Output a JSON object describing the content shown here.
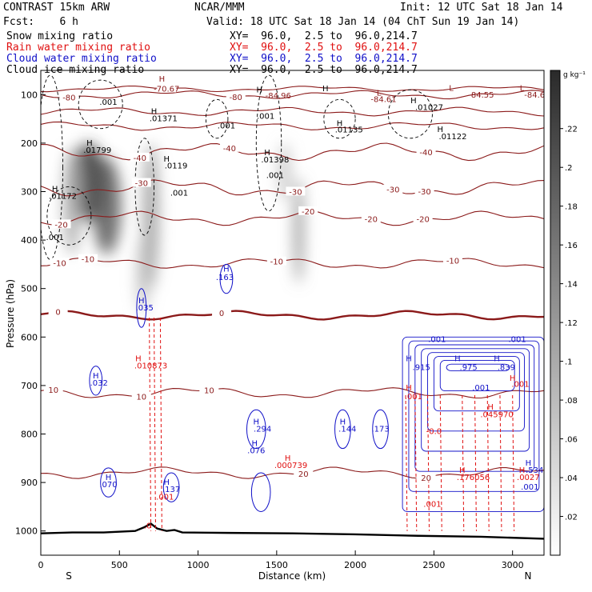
{
  "header": {
    "model": "CONTRAST 15km ARW",
    "center": "NCAR/MMM",
    "init": "Init: 12 UTC Sat 18 Jan 14",
    "fcst": "Fcst:    6 h",
    "valid": "Valid: 18 UTC Sat 18 Jan 14 (04 ChT Sun 19 Jan 14)",
    "fields": [
      {
        "label": "Snow mixing ratio",
        "xy": "XY=  96.0,  2.5 to  96.0,214.7",
        "color": "#000000"
      },
      {
        "label": "Rain water mixing ratio",
        "xy": "XY=  96.0,  2.5 to  96.0,214.7",
        "color": "#e01010"
      },
      {
        "label": "Cloud water mixing ratio",
        "xy": "XY=  96.0,  2.5 to  96.0,214.7",
        "color": "#1010c8"
      },
      {
        "label": "Cloud ice mixing ratio",
        "xy": "XY=  96.0,  2.5 to  96.0,214.7",
        "color": "#000000"
      }
    ]
  },
  "chart_data": {
    "type": "cross-section",
    "xlabel": "Distance (km)",
    "ylabel": "Pressure (hPa)",
    "xlim": [
      0,
      3200
    ],
    "ylim": [
      1050,
      50
    ],
    "xticks": [
      0,
      500,
      1000,
      1500,
      2000,
      2500,
      3000
    ],
    "yticks": [
      100,
      200,
      300,
      400,
      500,
      600,
      700,
      800,
      900,
      1000
    ],
    "x_end_labels": {
      "left": "S",
      "right": "N"
    },
    "colorbar": {
      "unit": "g kg⁻¹",
      "ticks": [
        0.02,
        0.04,
        0.06,
        0.08,
        0.1,
        0.12,
        0.14,
        0.16,
        0.18,
        0.2,
        0.22
      ],
      "tick_labels": [
        ".02",
        ".04",
        ".06",
        ".08",
        ".1",
        ".12",
        ".14",
        ".16",
        ".18",
        ".2",
        ".22"
      ],
      "max": 0.25
    },
    "snow_blobs": [
      {
        "x": 300,
        "p": 280,
        "rx": 110,
        "rp": 80,
        "v": 0.24
      },
      {
        "x": 420,
        "p": 330,
        "rx": 90,
        "rp": 100,
        "v": 0.2
      },
      {
        "x": 200,
        "p": 320,
        "rx": 60,
        "rp": 110,
        "v": 0.1
      },
      {
        "x": 700,
        "p": 350,
        "rx": 50,
        "rp": 150,
        "v": 0.12
      },
      {
        "x": 650,
        "p": 470,
        "rx": 40,
        "rp": 80,
        "v": 0.08
      },
      {
        "x": 1640,
        "p": 380,
        "rx": 30,
        "rp": 110,
        "v": 0.14
      },
      {
        "x": 1550,
        "p": 260,
        "rx": 35,
        "rp": 60,
        "v": 0.08
      }
    ],
    "temperature_contours": [
      {
        "level": -80,
        "label": "-80",
        "base_p": 100,
        "amp": 6,
        "label_x": [
          180,
          1240
        ]
      },
      {
        "level": -70,
        "label": "-70.67",
        "base_p": 88,
        "amp": 4,
        "label_x": [
          800
        ]
      },
      {
        "level": -60,
        "label": "",
        "base_p": 135,
        "amp": 6,
        "label_x": []
      },
      {
        "level": -50,
        "label": "",
        "base_p": 165,
        "amp": 6,
        "label_x": []
      },
      {
        "level": -40,
        "label": "-40",
        "base_p": 218,
        "amp": 12,
        "label_x": [
          630,
          1200,
          2450
        ]
      },
      {
        "level": -30,
        "label": "-30",
        "base_p": 292,
        "amp": 12,
        "label_x": [
          640,
          1620,
          2240,
          2440
        ]
      },
      {
        "level": -20,
        "label": "-20",
        "base_p": 355,
        "amp": 10,
        "label_x": [
          130,
          1700,
          2100,
          2430
        ]
      },
      {
        "level": -10,
        "label": "-10",
        "base_p": 448,
        "amp": 8,
        "label_x": [
          120,
          300,
          1500,
          2620
        ]
      },
      {
        "level": 0,
        "label": "0",
        "base_p": 555,
        "amp": 6,
        "label_x": [
          110,
          1150
        ]
      },
      {
        "level": 10,
        "label": "10",
        "base_p": 715,
        "amp": 8,
        "label_x": [
          80,
          640,
          1070
        ]
      },
      {
        "level": 20,
        "label": "20",
        "base_p": 880,
        "amp": 8,
        "label_x": [
          1670,
          2450
        ]
      }
    ],
    "extra_labels": [
      {
        "text": "-84.96",
        "x": 1510,
        "p": 108,
        "color": "#8b1a1a"
      },
      {
        "text": "-84.61",
        "x": 2180,
        "p": 115,
        "color": "#8b1a1a"
      },
      {
        "text": "-84.55",
        "x": 2800,
        "p": 106,
        "color": "#8b1a1a"
      },
      {
        "text": "-84.6",
        "x": 3140,
        "p": 106,
        "color": "#8b1a1a"
      },
      {
        "text": "L",
        "x": 2150,
        "p": 102,
        "color": "#8b1a1a"
      },
      {
        "text": "L",
        "x": 2610,
        "p": 92,
        "color": "#8b1a1a"
      },
      {
        "text": "L",
        "x": 3060,
        "p": 92,
        "color": "#8b1a1a"
      },
      {
        "text": "H",
        "x": 770,
        "p": 73,
        "color": "#8b1a1a"
      },
      {
        "text": "H",
        "x": 1390,
        "p": 95,
        "color": "#000000"
      },
      {
        "text": "H",
        "x": 1810,
        "p": 93,
        "color": "#000000"
      },
      {
        "text": ".001",
        "x": 430,
        "p": 121,
        "color": "#000000"
      },
      {
        "text": "H",
        "x": 720,
        "p": 140,
        "color": "#000000"
      },
      {
        "text": ".01371",
        "x": 780,
        "p": 155,
        "color": "#000000"
      },
      {
        "text": ".001",
        "x": 1180,
        "p": 170,
        "color": "#000000"
      },
      {
        "text": ".001",
        "x": 1430,
        "p": 150,
        "color": "#000000"
      },
      {
        "text": "H",
        "x": 1900,
        "p": 165,
        "color": "#000000"
      },
      {
        "text": ".01135",
        "x": 1960,
        "p": 178,
        "color": "#000000"
      },
      {
        "text": "H",
        "x": 2370,
        "p": 118,
        "color": "#000000"
      },
      {
        "text": ".01027",
        "x": 2470,
        "p": 132,
        "color": "#000000"
      },
      {
        "text": "H",
        "x": 2540,
        "p": 177,
        "color": "#000000"
      },
      {
        "text": ".01122",
        "x": 2620,
        "p": 192,
        "color": "#000000"
      },
      {
        "text": "H",
        "x": 310,
        "p": 205,
        "color": "#000000"
      },
      {
        "text": ".01799",
        "x": 360,
        "p": 220,
        "color": "#000000"
      },
      {
        "text": "H",
        "x": 800,
        "p": 238,
        "color": "#000000"
      },
      {
        "text": ".0119",
        "x": 860,
        "p": 252,
        "color": "#000000"
      },
      {
        "text": "H",
        "x": 1440,
        "p": 225,
        "color": "#000000"
      },
      {
        "text": ".01398",
        "x": 1490,
        "p": 240,
        "color": "#000000"
      },
      {
        "text": ".001",
        "x": 1490,
        "p": 272,
        "color": "#000000"
      },
      {
        "text": ".001",
        "x": 880,
        "p": 308,
        "color": "#000000"
      },
      {
        "text": "H",
        "x": 90,
        "p": 300,
        "color": "#000000"
      },
      {
        "text": ".01172",
        "x": 140,
        "p": 315,
        "color": "#000000"
      },
      {
        "text": ".001",
        "x": 90,
        "p": 400,
        "color": "#000000"
      },
      {
        "text": "H",
        "x": 1180,
        "p": 465,
        "color": "#1010c8"
      },
      {
        "text": ".163",
        "x": 1170,
        "p": 482,
        "color": "#1010c8"
      },
      {
        "text": "H",
        "x": 640,
        "p": 530,
        "color": "#1010c8"
      },
      {
        "text": ".035",
        "x": 660,
        "p": 545,
        "color": "#1010c8"
      },
      {
        "text": "H",
        "x": 620,
        "p": 650,
        "color": "#e01010"
      },
      {
        "text": ".010873",
        "x": 700,
        "p": 665,
        "color": "#e01010"
      },
      {
        "text": "H",
        "x": 350,
        "p": 685,
        "color": "#1010c8"
      },
      {
        "text": ".032",
        "x": 370,
        "p": 700,
        "color": "#1010c8"
      },
      {
        "text": "H",
        "x": 1370,
        "p": 780,
        "color": "#1010c8"
      },
      {
        "text": ".294",
        "x": 1410,
        "p": 795,
        "color": "#1010c8"
      },
      {
        "text": "H",
        "x": 1920,
        "p": 780,
        "color": "#1010c8"
      },
      {
        "text": ".144",
        "x": 1950,
        "p": 795,
        "color": "#1010c8"
      },
      {
        "text": ".173",
        "x": 2160,
        "p": 795,
        "color": "#1010c8"
      },
      {
        "text": "H",
        "x": 1360,
        "p": 825,
        "color": "#1010c8"
      },
      {
        "text": ".076",
        "x": 1370,
        "p": 840,
        "color": "#1010c8"
      },
      {
        "text": "H",
        "x": 1570,
        "p": 855,
        "color": "#e01010"
      },
      {
        "text": ".000739",
        "x": 1590,
        "p": 870,
        "color": "#e01010"
      },
      {
        "text": "H",
        "x": 2340,
        "p": 650,
        "color": "#1010c8"
      },
      {
        "text": ".915",
        "x": 2420,
        "p": 668,
        "color": "#1010c8"
      },
      {
        "text": ".001",
        "x": 2520,
        "p": 610,
        "color": "#1010c8"
      },
      {
        "text": "H",
        "x": 2650,
        "p": 650,
        "color": "#1010c8"
      },
      {
        "text": ".975",
        "x": 2720,
        "p": 668,
        "color": "#1010c8"
      },
      {
        "text": "H",
        "x": 2900,
        "p": 650,
        "color": "#1010c8"
      },
      {
        "text": ".839",
        "x": 2960,
        "p": 668,
        "color": "#1010c8"
      },
      {
        "text": ".001",
        "x": 3030,
        "p": 610,
        "color": "#1010c8"
      },
      {
        "text": "H",
        "x": 3000,
        "p": 690,
        "color": "#e01010"
      },
      {
        "text": ".001",
        "x": 3050,
        "p": 703,
        "color": "#e01010"
      },
      {
        "text": "H",
        "x": 2340,
        "p": 710,
        "color": "#e01010"
      },
      {
        "text": ".001",
        "x": 2370,
        "p": 728,
        "color": "#e01010"
      },
      {
        "text": "H",
        "x": 2860,
        "p": 750,
        "color": "#e01010"
      },
      {
        "text": ".045970",
        "x": 2900,
        "p": 765,
        "color": "#e01010"
      },
      {
        "text": ".001",
        "x": 2800,
        "p": 710,
        "color": "#1010c8"
      },
      {
        "text": "H",
        "x": 3100,
        "p": 865,
        "color": "#1010c8"
      },
      {
        "text": ".534",
        "x": 3140,
        "p": 880,
        "color": "#1010c8"
      },
      {
        "text": "H",
        "x": 2680,
        "p": 880,
        "color": "#e01010"
      },
      {
        "text": ".176056",
        "x": 2750,
        "p": 895,
        "color": "#e01010"
      },
      {
        "text": "H",
        "x": 3060,
        "p": 880,
        "color": "#e01010"
      },
      {
        "text": ".0027",
        "x": 3100,
        "p": 895,
        "color": "#e01010"
      },
      {
        "text": ".001",
        "x": 3110,
        "p": 915,
        "color": "#1010c8"
      },
      {
        "text": "H",
        "x": 430,
        "p": 895,
        "color": "#1010c8"
      },
      {
        "text": ".070",
        "x": 430,
        "p": 910,
        "color": "#1010c8"
      },
      {
        "text": "H",
        "x": 800,
        "p": 905,
        "color": "#1010c8"
      },
      {
        "text": ".137",
        "x": 830,
        "p": 920,
        "color": "#1010c8"
      },
      {
        "text": ".001",
        "x": 790,
        "p": 935,
        "color": "#e01010"
      },
      {
        "text": ".001",
        "x": 2490,
        "p": 950,
        "color": "#e01010"
      },
      {
        "text": ".0",
        "x": 680,
        "p": 995,
        "color": "#e01010"
      },
      {
        "text": "-0.0",
        "x": 2500,
        "p": 800,
        "color": "#e01010"
      }
    ],
    "surface_pressure": [
      [
        0,
        1005
      ],
      [
        200,
        1003
      ],
      [
        400,
        1003
      ],
      [
        600,
        1000
      ],
      [
        660,
        992
      ],
      [
        700,
        985
      ],
      [
        740,
        995
      ],
      [
        800,
        1000
      ],
      [
        850,
        998
      ],
      [
        900,
        1003
      ],
      [
        1200,
        1004
      ],
      [
        1600,
        1005
      ],
      [
        2000,
        1007
      ],
      [
        2400,
        1010
      ],
      [
        2800,
        1012
      ],
      [
        3200,
        1016
      ]
    ],
    "cloud_water_zone": {
      "x0": 2300,
      "x1": 3200,
      "p0": 600,
      "p1": 960
    }
  }
}
